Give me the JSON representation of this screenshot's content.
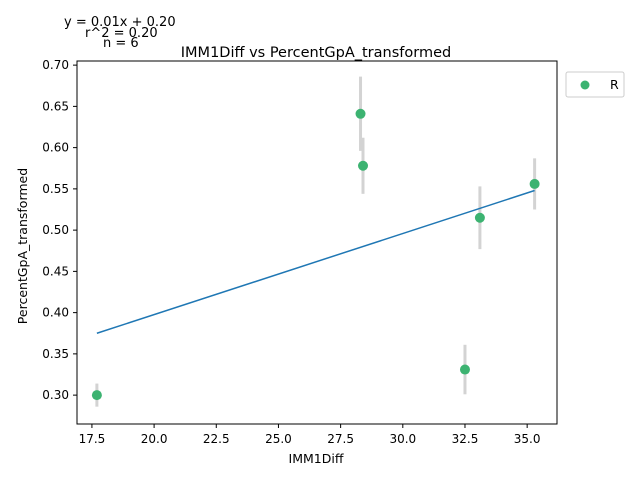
{
  "chart_data": {
    "type": "scatter",
    "title": "IMM1Diff vs PercentGpA_transformed",
    "xlabel": "IMM1Diff",
    "ylabel": "PercentGpA_transformed",
    "xlim": [
      16.9,
      36.2
    ],
    "ylim": [
      0.265,
      0.705
    ],
    "x_ticks": [
      "17.5",
      "20.0",
      "22.5",
      "25.0",
      "27.5",
      "30.0",
      "32.5",
      "35.0"
    ],
    "y_ticks": [
      "0.30",
      "0.35",
      "0.40",
      "0.45",
      "0.50",
      "0.55",
      "0.60",
      "0.65",
      "0.70"
    ],
    "grid": false,
    "legend_position": "outside top-right",
    "series": [
      {
        "name": "R",
        "color": "#3cb371",
        "points": [
          {
            "x": 17.7,
            "y": 0.3,
            "err": 0.014
          },
          {
            "x": 28.3,
            "y": 0.641,
            "err": 0.045
          },
          {
            "x": 28.4,
            "y": 0.578,
            "err": 0.034
          },
          {
            "x": 32.5,
            "y": 0.331,
            "err": 0.03
          },
          {
            "x": 33.1,
            "y": 0.515,
            "err": 0.038
          },
          {
            "x": 35.3,
            "y": 0.556,
            "err": 0.031
          }
        ]
      }
    ],
    "fit_line": {
      "x": [
        17.7,
        35.3
      ],
      "y": [
        0.375,
        0.548
      ],
      "color": "#1f77b4"
    },
    "errorbar_color": "#d3d3d3",
    "annotations": [
      "y = 0.01x + 0.20",
      "r^2 = 0.20",
      "n = 6"
    ]
  }
}
